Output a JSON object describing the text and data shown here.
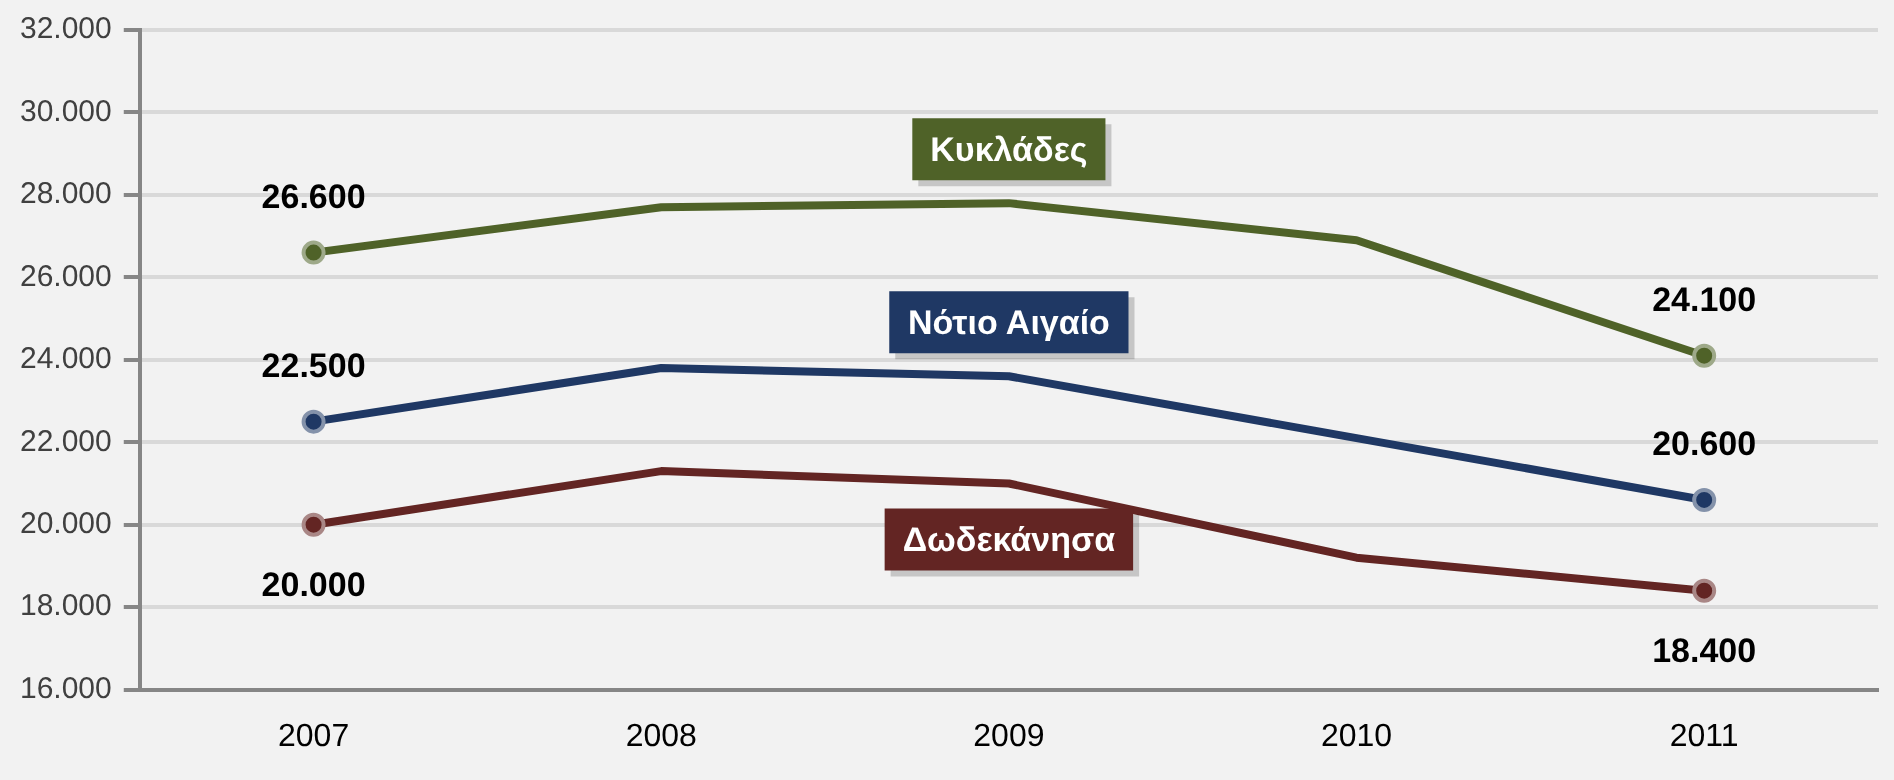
{
  "chart_data": {
    "type": "line",
    "categories": [
      "2007",
      "2008",
      "2009",
      "2010",
      "2011"
    ],
    "series": [
      {
        "name": "Κυκλάδες",
        "color": "#4f6228",
        "values": [
          26600,
          27700,
          27800,
          26900,
          24100
        ],
        "value_labels": [
          "26.600",
          null,
          null,
          null,
          "24.100"
        ]
      },
      {
        "name": "Νότιο Αιγαίο",
        "color": "#1f3864",
        "values": [
          22500,
          23800,
          23600,
          22100,
          20600
        ],
        "value_labels": [
          "22.500",
          null,
          null,
          null,
          "20.600"
        ]
      },
      {
        "name": "Δωδεκάνησα",
        "color": "#632523",
        "values": [
          20000,
          21300,
          21000,
          19200,
          18400
        ],
        "value_labels": [
          "20.000",
          null,
          null,
          null,
          "18.400"
        ]
      }
    ],
    "ylim": [
      16000,
      32000
    ],
    "yticks": [
      {
        "value": 16000,
        "label": "16.000"
      },
      {
        "value": 18000,
        "label": "18.000"
      },
      {
        "value": 20000,
        "label": "20.000"
      },
      {
        "value": 22000,
        "label": "22.000"
      },
      {
        "value": 24000,
        "label": "24.000"
      },
      {
        "value": 26000,
        "label": "26.000"
      },
      {
        "value": 28000,
        "label": "28.000"
      },
      {
        "value": 30000,
        "label": "30.000"
      },
      {
        "value": 32000,
        "label": "32.000"
      }
    ],
    "grid": "y",
    "legend": false,
    "line_style": "solid"
  }
}
